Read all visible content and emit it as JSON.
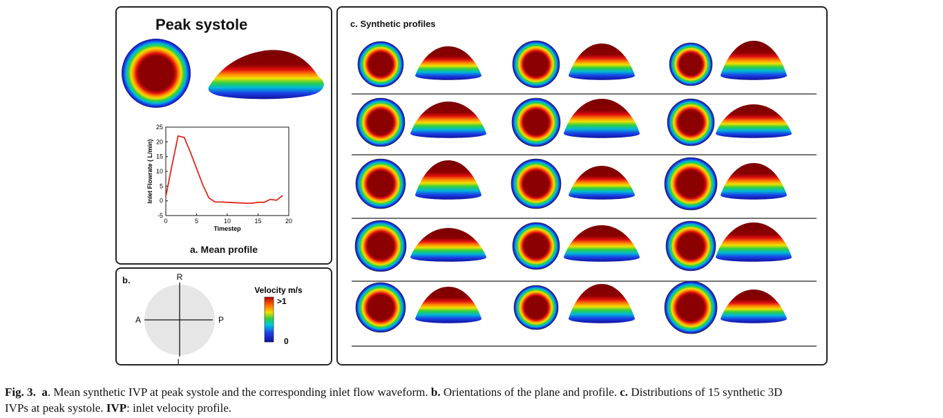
{
  "panel_a": {
    "title": "Peak systole",
    "label": "a. Mean profile"
  },
  "chart_data": {
    "type": "line",
    "x": [
      0,
      1,
      2,
      3,
      4,
      5,
      6,
      7,
      8,
      9,
      10,
      11,
      12,
      13,
      14,
      15,
      16,
      17,
      18,
      19
    ],
    "series": [
      {
        "values": [
          1.5,
          12,
          22,
          21.5,
          16.5,
          11,
          5.5,
          1,
          -0.4,
          -0.4,
          -0.5,
          -0.6,
          -0.7,
          -0.8,
          -0.8,
          -0.5,
          -0.5,
          0.5,
          0.2,
          1.8
        ]
      }
    ],
    "xlabel": "Timestep",
    "ylabel": "Inlet Flowrate ( L/min)",
    "xlim": [
      0,
      20
    ],
    "ylim": [
      -5,
      25
    ],
    "xticks": [
      "0",
      "5",
      "10",
      "15",
      "20"
    ],
    "yticks": [
      "-5",
      "0",
      "5",
      "10",
      "15",
      "20",
      "25"
    ],
    "color": "#e0241b"
  },
  "panel_b": {
    "label": "b.",
    "orientation": {
      "top": "R",
      "bottom": "L",
      "left": "A",
      "right": "P"
    },
    "colorbar": {
      "title": "Velocity m/s",
      "max_label": ">1",
      "min_label": "0"
    }
  },
  "panel_c": {
    "title": "c. Synthetic profiles",
    "rows": 5,
    "columns": 3
  },
  "caption": {
    "fig": "Fig. 3.",
    "a_key": "a",
    "a_text": ". Mean synthetic IVP at peak systole and the corresponding inlet flow waveform.",
    "b_key": "b.",
    "b_text": " Orientations of the plane and profile.",
    "c_key": "c.",
    "c_text": " Distributions of 15 synthetic 3D",
    "line2_text": "IVPs at peak systole.",
    "ivp_key": "IVP",
    "ivp_text": ": inlet velocity profile."
  },
  "colors": {
    "jet_low": "#1a1ae6",
    "jet_mid": "#1fd01f",
    "jet_high": "#f0b000",
    "jet_peak": "#8b0000",
    "panel_border": "#222222"
  }
}
